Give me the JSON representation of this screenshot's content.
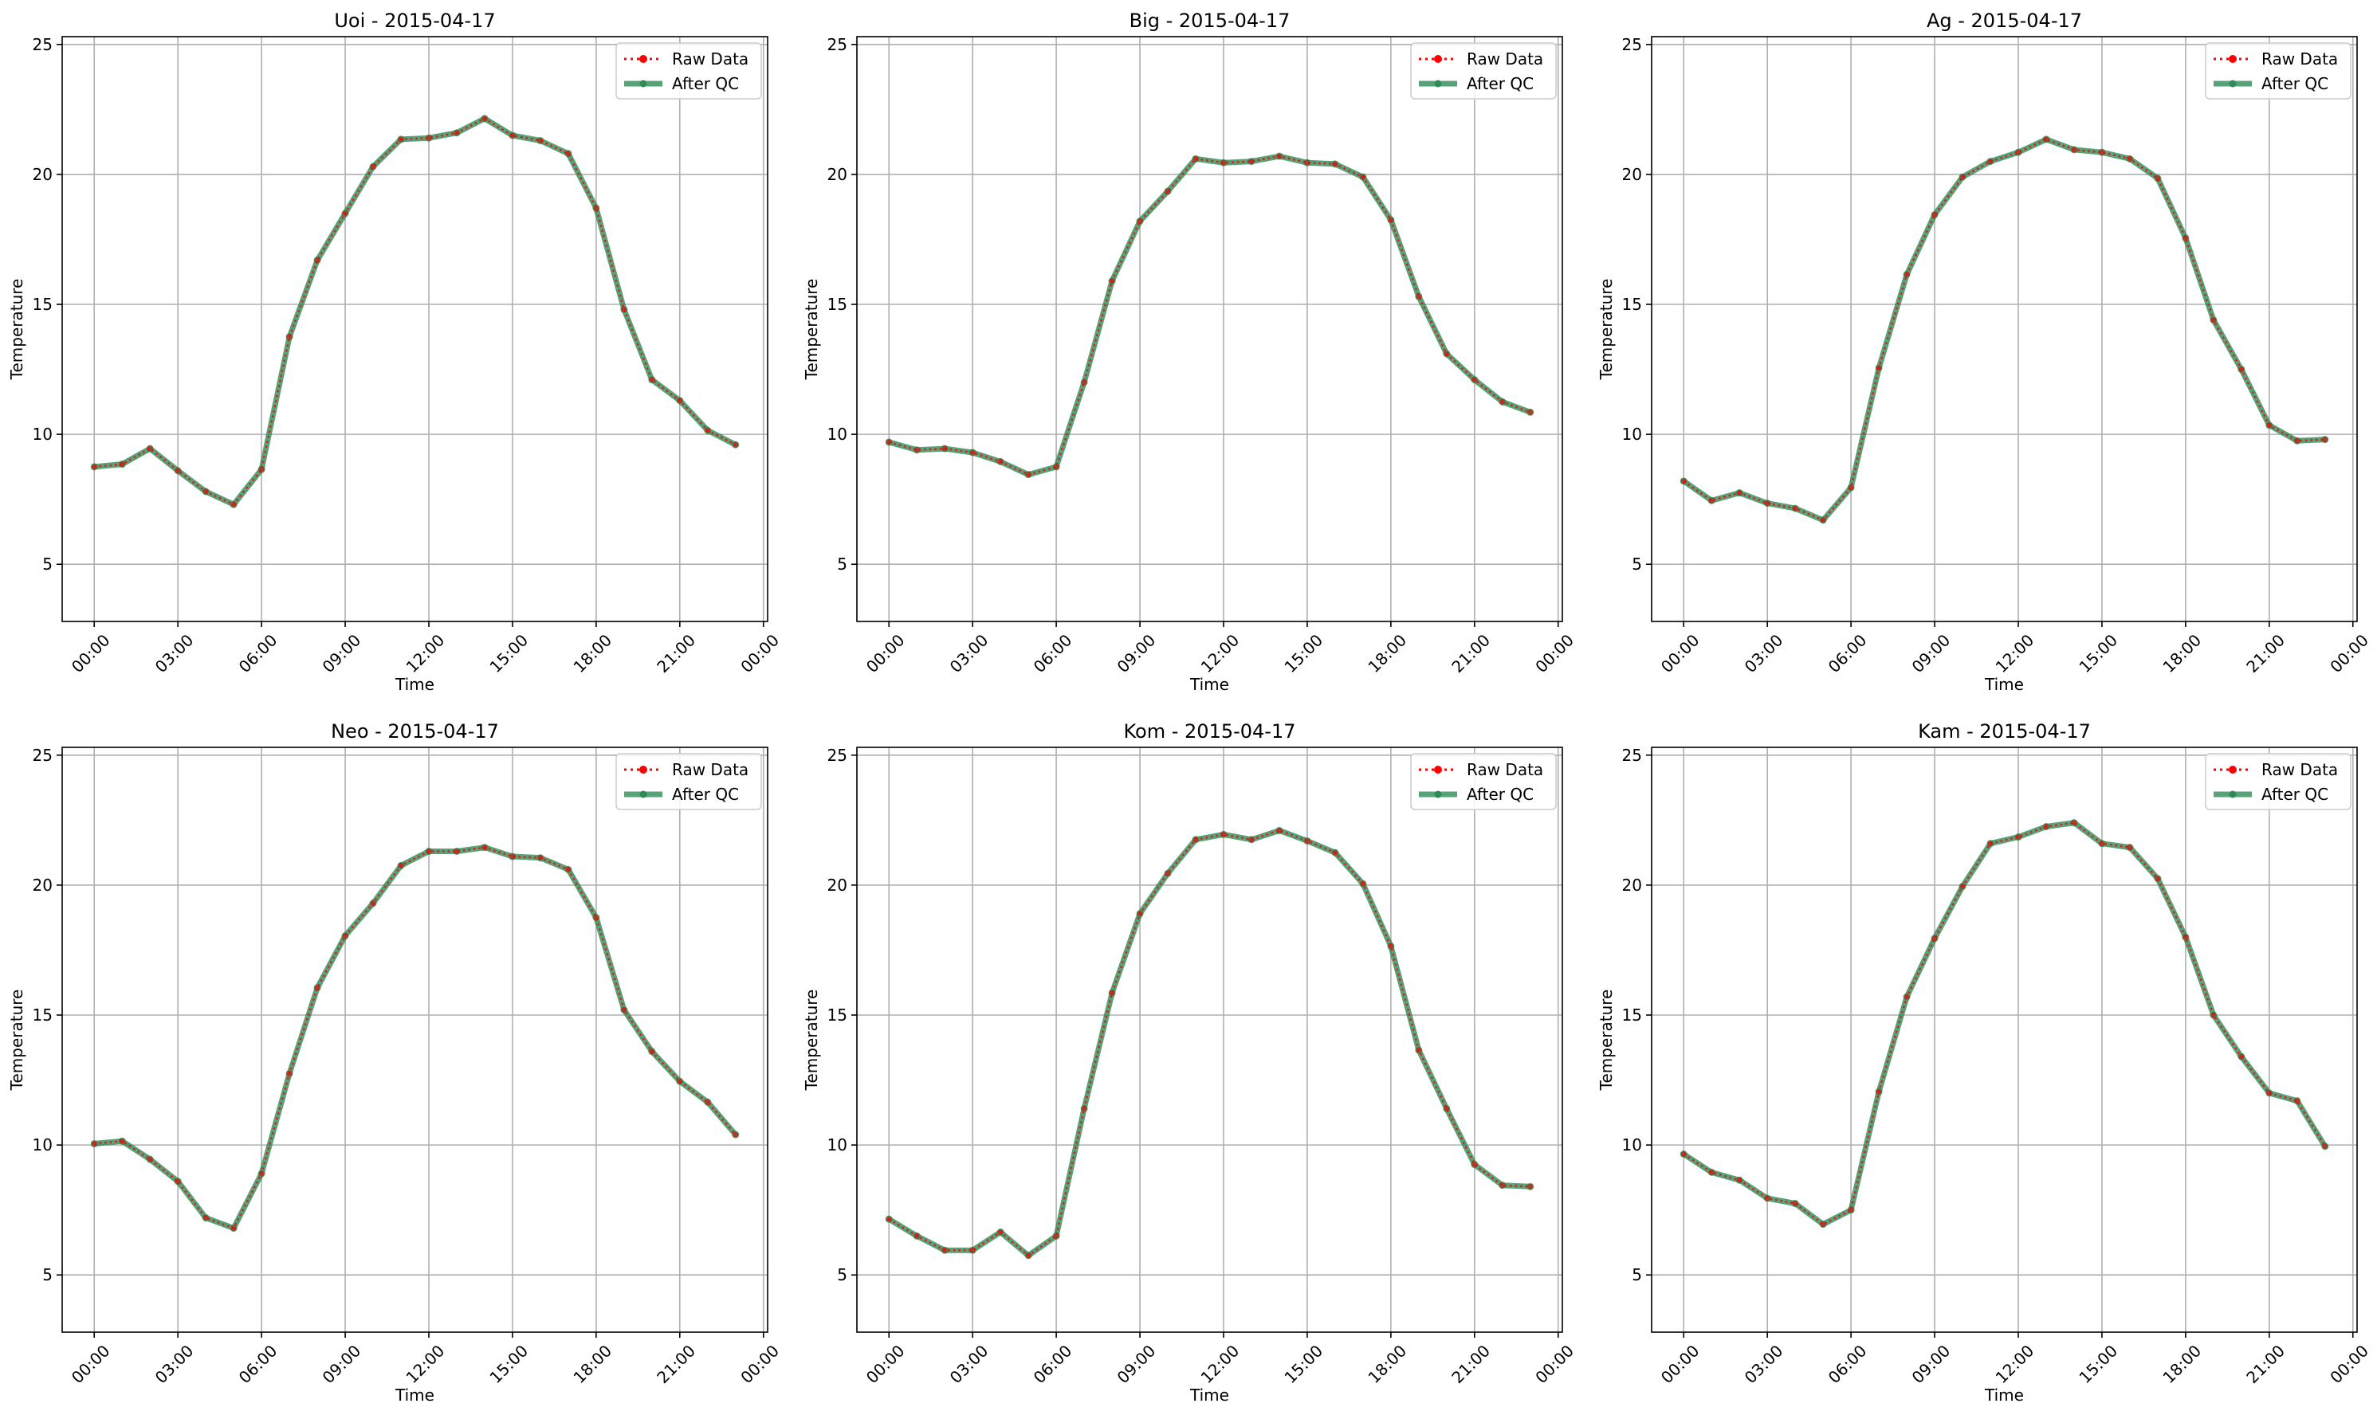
{
  "chart_data": [
    {
      "type": "line",
      "title": "Uoi - 2015-04-17",
      "xlabel": "Time",
      "ylabel": "Temperature",
      "ylim": [
        2.8,
        25.3
      ],
      "xlim": [
        "2015-04-16 22:51",
        "2015-04-18 00:09"
      ],
      "xticks": [
        "00:00",
        "03:00",
        "06:00",
        "09:00",
        "12:00",
        "15:00",
        "18:00",
        "21:00",
        "00:00"
      ],
      "yticks": [
        5,
        10,
        15,
        20,
        25
      ],
      "grid": true,
      "legend": "top-right",
      "x": [
        "00:00",
        "01:00",
        "02:00",
        "03:00",
        "04:00",
        "05:00",
        "06:00",
        "07:00",
        "08:00",
        "09:00",
        "10:00",
        "11:00",
        "12:00",
        "13:00",
        "14:00",
        "15:00",
        "16:00",
        "17:00",
        "18:00",
        "19:00",
        "20:00",
        "21:00",
        "22:00",
        "23:00"
      ],
      "series": [
        {
          "name": "Raw Data",
          "color": "#ff0000",
          "values": [
            8.75,
            8.85,
            9.45,
            8.6,
            7.8,
            7.3,
            8.65,
            13.75,
            16.7,
            18.5,
            20.3,
            21.35,
            21.4,
            21.6,
            22.15,
            21.5,
            21.3,
            20.8,
            18.7,
            14.8,
            12.1,
            11.3,
            10.15,
            9.6
          ]
        },
        {
          "name": "After QC",
          "color": "#2e8b57",
          "values": [
            8.75,
            8.85,
            9.45,
            8.6,
            7.8,
            7.3,
            8.65,
            13.75,
            16.7,
            18.5,
            20.3,
            21.35,
            21.4,
            21.6,
            22.15,
            21.5,
            21.3,
            20.8,
            18.7,
            14.8,
            12.1,
            11.3,
            10.15,
            9.6
          ]
        }
      ]
    },
    {
      "type": "line",
      "title": "Big - 2015-04-17",
      "xlabel": "Time",
      "ylabel": "Temperature",
      "ylim": [
        2.8,
        25.3
      ],
      "xlim": [
        "2015-04-16 22:51",
        "2015-04-18 00:09"
      ],
      "xticks": [
        "00:00",
        "03:00",
        "06:00",
        "09:00",
        "12:00",
        "15:00",
        "18:00",
        "21:00",
        "00:00"
      ],
      "yticks": [
        5,
        10,
        15,
        20,
        25
      ],
      "grid": true,
      "legend": "top-right",
      "x": [
        "00:00",
        "01:00",
        "02:00",
        "03:00",
        "04:00",
        "05:00",
        "06:00",
        "07:00",
        "08:00",
        "09:00",
        "10:00",
        "11:00",
        "12:00",
        "13:00",
        "14:00",
        "15:00",
        "16:00",
        "17:00",
        "18:00",
        "19:00",
        "20:00",
        "21:00",
        "22:00",
        "23:00"
      ],
      "series": [
        {
          "name": "Raw Data",
          "color": "#ff0000",
          "values": [
            9.7,
            9.4,
            9.45,
            9.3,
            8.95,
            8.45,
            8.75,
            12.0,
            15.9,
            18.2,
            19.35,
            20.6,
            20.45,
            20.5,
            20.7,
            20.45,
            20.4,
            19.9,
            18.25,
            15.3,
            13.1,
            12.1,
            11.25,
            10.85
          ]
        },
        {
          "name": "After QC",
          "color": "#2e8b57",
          "values": [
            9.7,
            9.4,
            9.45,
            9.3,
            8.95,
            8.45,
            8.75,
            12.0,
            15.9,
            18.2,
            19.35,
            20.6,
            20.45,
            20.5,
            20.7,
            20.45,
            20.4,
            19.9,
            18.25,
            15.3,
            13.1,
            12.1,
            11.25,
            10.85
          ]
        }
      ]
    },
    {
      "type": "line",
      "title": "Ag - 2015-04-17",
      "xlabel": "Time",
      "ylabel": "Temperature",
      "ylim": [
        2.8,
        25.3
      ],
      "xlim": [
        "2015-04-16 22:51",
        "2015-04-18 00:09"
      ],
      "xticks": [
        "00:00",
        "03:00",
        "06:00",
        "09:00",
        "12:00",
        "15:00",
        "18:00",
        "21:00",
        "00:00"
      ],
      "yticks": [
        5,
        10,
        15,
        20,
        25
      ],
      "grid": true,
      "legend": "top-right",
      "x": [
        "00:00",
        "01:00",
        "02:00",
        "03:00",
        "04:00",
        "05:00",
        "06:00",
        "07:00",
        "08:00",
        "09:00",
        "10:00",
        "11:00",
        "12:00",
        "13:00",
        "14:00",
        "15:00",
        "16:00",
        "17:00",
        "18:00",
        "19:00",
        "20:00",
        "21:00",
        "22:00",
        "23:00"
      ],
      "series": [
        {
          "name": "Raw Data",
          "color": "#ff0000",
          "values": [
            8.2,
            7.45,
            7.75,
            7.35,
            7.15,
            6.7,
            7.95,
            12.55,
            16.15,
            18.45,
            19.9,
            20.5,
            20.85,
            21.35,
            20.95,
            20.85,
            20.6,
            19.85,
            17.55,
            14.4,
            12.5,
            10.35,
            9.75,
            9.8
          ]
        },
        {
          "name": "After QC",
          "color": "#2e8b57",
          "values": [
            8.2,
            7.45,
            7.75,
            7.35,
            7.15,
            6.7,
            7.95,
            12.55,
            16.15,
            18.45,
            19.9,
            20.5,
            20.85,
            21.35,
            20.95,
            20.85,
            20.6,
            19.85,
            17.55,
            14.4,
            12.5,
            10.35,
            9.75,
            9.8
          ]
        }
      ]
    },
    {
      "type": "line",
      "title": "Neo - 2015-04-17",
      "xlabel": "Time",
      "ylabel": "Temperature",
      "ylim": [
        2.8,
        25.3
      ],
      "xlim": [
        "2015-04-16 22:51",
        "2015-04-18 00:09"
      ],
      "xticks": [
        "00:00",
        "03:00",
        "06:00",
        "09:00",
        "12:00",
        "15:00",
        "18:00",
        "21:00",
        "00:00"
      ],
      "yticks": [
        5,
        10,
        15,
        20,
        25
      ],
      "grid": true,
      "legend": "top-right",
      "x": [
        "00:00",
        "01:00",
        "02:00",
        "03:00",
        "04:00",
        "05:00",
        "06:00",
        "07:00",
        "08:00",
        "09:00",
        "10:00",
        "11:00",
        "12:00",
        "13:00",
        "14:00",
        "15:00",
        "16:00",
        "17:00",
        "18:00",
        "19:00",
        "20:00",
        "21:00",
        "22:00",
        "23:00"
      ],
      "series": [
        {
          "name": "Raw Data",
          "color": "#ff0000",
          "values": [
            10.05,
            10.15,
            9.45,
            8.6,
            7.2,
            6.8,
            8.9,
            12.75,
            16.05,
            18.05,
            19.3,
            20.75,
            21.3,
            21.3,
            21.45,
            21.1,
            21.05,
            20.6,
            18.75,
            15.2,
            13.6,
            12.45,
            11.65,
            10.4
          ]
        },
        {
          "name": "After QC",
          "color": "#2e8b57",
          "values": [
            10.05,
            10.15,
            9.45,
            8.6,
            7.2,
            6.8,
            8.9,
            12.75,
            16.05,
            18.05,
            19.3,
            20.75,
            21.3,
            21.3,
            21.45,
            21.1,
            21.05,
            20.6,
            18.75,
            15.2,
            13.6,
            12.45,
            11.65,
            10.4
          ]
        }
      ]
    },
    {
      "type": "line",
      "title": "Kom - 2015-04-17",
      "xlabel": "Time",
      "ylabel": "Temperature",
      "ylim": [
        2.8,
        25.3
      ],
      "xlim": [
        "2015-04-16 22:51",
        "2015-04-18 00:09"
      ],
      "xticks": [
        "00:00",
        "03:00",
        "06:00",
        "09:00",
        "12:00",
        "15:00",
        "18:00",
        "21:00",
        "00:00"
      ],
      "yticks": [
        5,
        10,
        15,
        20,
        25
      ],
      "grid": true,
      "legend": "top-right",
      "x": [
        "00:00",
        "01:00",
        "02:00",
        "03:00",
        "04:00",
        "05:00",
        "06:00",
        "07:00",
        "08:00",
        "09:00",
        "10:00",
        "11:00",
        "12:00",
        "13:00",
        "14:00",
        "15:00",
        "16:00",
        "17:00",
        "18:00",
        "19:00",
        "20:00",
        "21:00",
        "22:00",
        "23:00"
      ],
      "series": [
        {
          "name": "Raw Data",
          "color": "#ff0000",
          "values": [
            7.15,
            6.5,
            5.95,
            5.95,
            6.65,
            5.75,
            6.5,
            11.4,
            15.85,
            18.9,
            20.45,
            21.75,
            21.95,
            21.75,
            22.1,
            21.7,
            21.25,
            20.05,
            17.65,
            13.65,
            11.4,
            9.25,
            8.45,
            8.4
          ]
        },
        {
          "name": "After QC",
          "color": "#2e8b57",
          "values": [
            7.15,
            6.5,
            5.95,
            5.95,
            6.65,
            5.75,
            6.5,
            11.4,
            15.85,
            18.9,
            20.45,
            21.75,
            21.95,
            21.75,
            22.1,
            21.7,
            21.25,
            20.05,
            17.65,
            13.65,
            11.4,
            9.25,
            8.45,
            8.4
          ]
        }
      ]
    },
    {
      "type": "line",
      "title": "Kam - 2015-04-17",
      "xlabel": "Time",
      "ylabel": "Temperature",
      "ylim": [
        2.8,
        25.3
      ],
      "xlim": [
        "2015-04-16 22:51",
        "2015-04-18 00:09"
      ],
      "xticks": [
        "00:00",
        "03:00",
        "06:00",
        "09:00",
        "12:00",
        "15:00",
        "18:00",
        "21:00",
        "00:00"
      ],
      "yticks": [
        5,
        10,
        15,
        20,
        25
      ],
      "grid": true,
      "legend": "top-right",
      "x": [
        "00:00",
        "01:00",
        "02:00",
        "03:00",
        "04:00",
        "05:00",
        "06:00",
        "07:00",
        "08:00",
        "09:00",
        "10:00",
        "11:00",
        "12:00",
        "13:00",
        "14:00",
        "15:00",
        "16:00",
        "17:00",
        "18:00",
        "19:00",
        "20:00",
        "21:00",
        "22:00",
        "23:00"
      ],
      "series": [
        {
          "name": "Raw Data",
          "color": "#ff0000",
          "values": [
            9.65,
            8.95,
            8.65,
            7.95,
            7.75,
            6.95,
            7.5,
            12.05,
            15.7,
            17.95,
            19.95,
            21.6,
            21.85,
            22.25,
            22.4,
            21.6,
            21.45,
            20.25,
            18.0,
            15.0,
            13.4,
            12.0,
            11.7,
            9.95
          ]
        },
        {
          "name": "After QC",
          "color": "#2e8b57",
          "values": [
            9.65,
            8.95,
            8.65,
            7.95,
            7.75,
            6.95,
            7.5,
            12.05,
            15.7,
            17.95,
            19.95,
            21.6,
            21.85,
            22.25,
            22.4,
            21.6,
            21.45,
            20.25,
            18.0,
            15.0,
            13.4,
            12.0,
            11.7,
            9.95
          ]
        }
      ]
    }
  ]
}
